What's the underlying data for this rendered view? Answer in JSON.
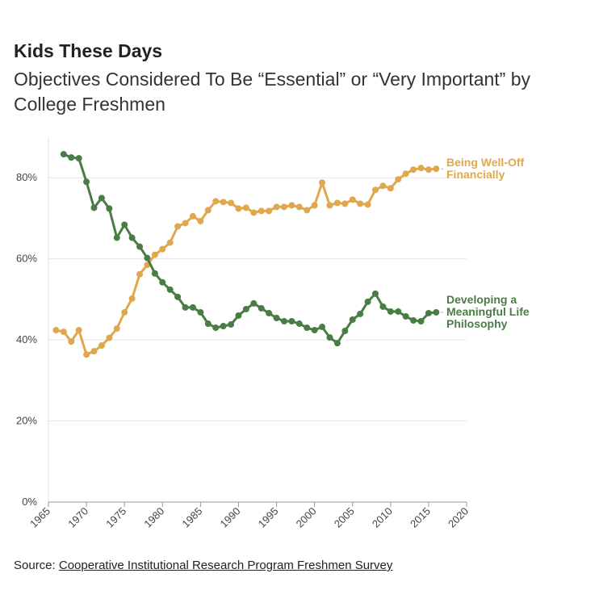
{
  "chart_data": {
    "type": "line",
    "title": "Kids These Days",
    "subtitle": "Objectives Considered To Be “Essential” or “Very Important” by College Freshmen",
    "source_label": "Source:",
    "source_link": "Cooperative Institutional Research Program Freshmen Survey",
    "x": [
      1966,
      1967,
      1968,
      1969,
      1970,
      1971,
      1972,
      1973,
      1974,
      1975,
      1976,
      1977,
      1978,
      1979,
      1980,
      1981,
      1982,
      1983,
      1984,
      1985,
      1986,
      1987,
      1988,
      1989,
      1990,
      1991,
      1992,
      1993,
      1994,
      1995,
      1996,
      1997,
      1998,
      1999,
      2000,
      2001,
      2002,
      2003,
      2004,
      2005,
      2006,
      2007,
      2008,
      2009,
      2010,
      2011,
      2012,
      2013,
      2014,
      2015,
      2016
    ],
    "series": [
      {
        "name": "Being Well-Off Financially",
        "color": "#e0a84e",
        "values": [
          42.4,
          42.0,
          39.6,
          42.4,
          36.4,
          37.2,
          38.6,
          40.5,
          42.8,
          46.8,
          50.2,
          56.2,
          58.5,
          61.0,
          62.4,
          64.0,
          68.0,
          68.8,
          70.5,
          69.3,
          72.0,
          74.2,
          74.0,
          73.8,
          72.4,
          72.6,
          71.4,
          71.8,
          71.8,
          72.8,
          72.8,
          73.2,
          72.8,
          72.0,
          73.2,
          78.8,
          73.2,
          73.8,
          73.6,
          74.6,
          73.6,
          73.4,
          77.0,
          78.0,
          77.4,
          79.6,
          81.0,
          82.0,
          82.4,
          82.0,
          82.2
        ]
      },
      {
        "name": "Developing a Meaningful Life Philosophy",
        "color": "#4a7c45",
        "values": [
          null,
          85.8,
          85.0,
          84.8,
          79.0,
          72.6,
          75.0,
          72.4,
          65.2,
          68.4,
          65.2,
          63.0,
          60.2,
          56.4,
          54.2,
          52.4,
          50.6,
          48.0,
          48.0,
          46.8,
          44.0,
          43.0,
          43.4,
          43.8,
          46.0,
          47.6,
          49.0,
          47.8,
          46.6,
          45.4,
          44.6,
          44.6,
          44.0,
          43.0,
          42.4,
          43.2,
          40.6,
          39.2,
          42.2,
          45.0,
          46.4,
          49.4,
          51.4,
          48.2,
          47.0,
          47.0,
          45.8,
          44.8,
          44.6,
          46.6,
          46.8
        ]
      }
    ],
    "xlim": [
      1965,
      2020
    ],
    "xticks": [
      1965,
      1970,
      1975,
      1980,
      1985,
      1990,
      1995,
      2000,
      2005,
      2010,
      2015,
      2020
    ],
    "ylim": [
      0,
      90
    ],
    "yticks": [
      {
        "value": 0,
        "label": "0%"
      },
      {
        "value": 20,
        "label": "20%"
      },
      {
        "value": 40,
        "label": "40%"
      },
      {
        "value": 60,
        "label": "60%"
      },
      {
        "value": 80,
        "label": "80%"
      }
    ],
    "grid": true
  }
}
